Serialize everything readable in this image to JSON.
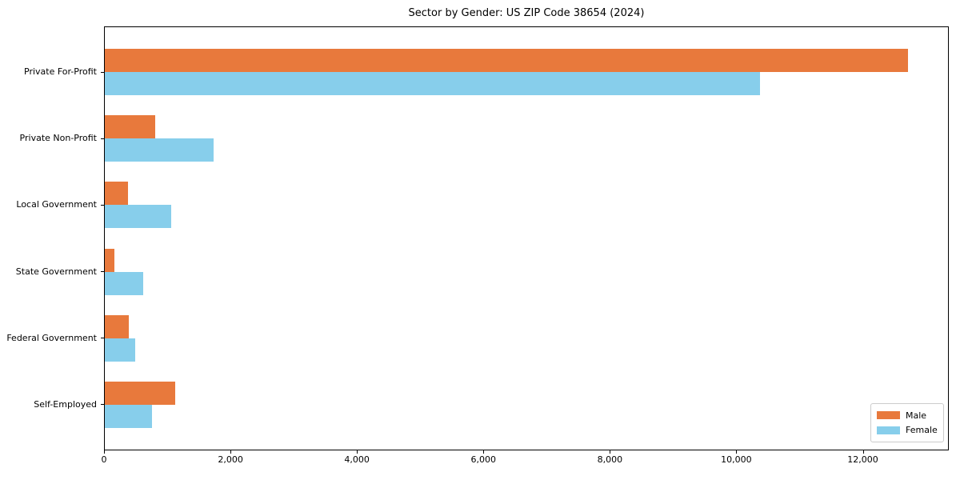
{
  "title": "Sector by Gender: US ZIP Code 38654 (2024)",
  "chart_data": {
    "type": "bar",
    "orientation": "horizontal",
    "title": "Sector by Gender: US ZIP Code 38654 (2024)",
    "categories": [
      "Private For-Profit",
      "Private Non-Profit",
      "Local Government",
      "State Government",
      "Federal Government",
      "Self-Employed"
    ],
    "series": [
      {
        "name": "Male",
        "color": "#e8793c",
        "values": [
          12720,
          815,
          375,
          160,
          395,
          1120
        ]
      },
      {
        "name": "Female",
        "color": "#87ceeb",
        "values": [
          10370,
          1730,
          1060,
          615,
          490,
          765
        ]
      }
    ],
    "xlabel": "",
    "ylabel": "",
    "xlim": [
      0,
      13360
    ],
    "xticks": [
      0,
      2000,
      4000,
      6000,
      8000,
      10000,
      12000
    ],
    "xtick_labels": [
      "0",
      "2,000",
      "4,000",
      "6,000",
      "8,000",
      "10,000",
      "12,000"
    ],
    "legend_position": "lower right",
    "grid": false
  },
  "legend": {
    "items": [
      {
        "label": "Male",
        "color": "#e8793c"
      },
      {
        "label": "Female",
        "color": "#87ceeb"
      }
    ]
  }
}
